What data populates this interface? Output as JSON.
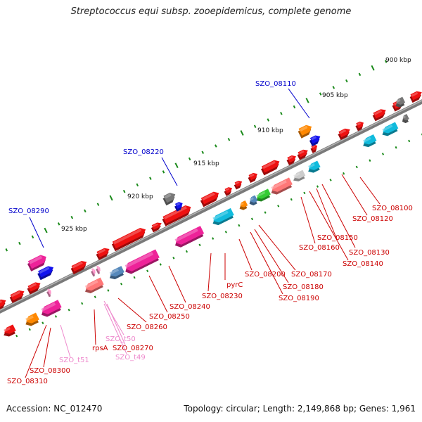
{
  "title": "Streptococcus equi subsp. zooepidemicus, complete genome",
  "footer": {
    "accession": "Accession: NC_012470",
    "summary": "Topology: circular; Length: 2,149,868 bp; Genes: 1,961"
  },
  "ruler": [
    {
      "label": "900 kbp"
    },
    {
      "label": "905 kbp"
    },
    {
      "label": "910 kbp"
    },
    {
      "label": "915 kbp"
    },
    {
      "label": "920 kbp"
    },
    {
      "label": "925 kbp"
    }
  ],
  "gene_labels": [
    {
      "text": "SZO_08110",
      "color": "#0000cc"
    },
    {
      "text": "SZO_08220",
      "color": "#0000cc"
    },
    {
      "text": "SZO_08290",
      "color": "#0000cc"
    },
    {
      "text": "SZO_08100",
      "color": "#cc0000"
    },
    {
      "text": "SZO_08120",
      "color": "#cc0000"
    },
    {
      "text": "SZO_08150",
      "color": "#cc0000"
    },
    {
      "text": "SZO_08130",
      "color": "#cc0000"
    },
    {
      "text": "SZO_08160",
      "color": "#cc0000"
    },
    {
      "text": "SZO_08140",
      "color": "#cc0000"
    },
    {
      "text": "pyrC",
      "color": "#cc0000"
    },
    {
      "text": "SZO_08200",
      "color": "#cc0000"
    },
    {
      "text": "SZO_08170",
      "color": "#cc0000"
    },
    {
      "text": "SZO_08180",
      "color": "#cc0000"
    },
    {
      "text": "SZO_08230",
      "color": "#cc0000"
    },
    {
      "text": "SZO_08190",
      "color": "#cc0000"
    },
    {
      "text": "SZO_08240",
      "color": "#cc0000"
    },
    {
      "text": "SZO_08250",
      "color": "#cc0000"
    },
    {
      "text": "SZO_08260",
      "color": "#cc0000"
    },
    {
      "text": "SZO_t50",
      "color": "#ee88cc"
    },
    {
      "text": "rpsA",
      "color": "#cc0000"
    },
    {
      "text": "SZO_08270",
      "color": "#cc0000"
    },
    {
      "text": "SZO_t49",
      "color": "#ee88cc"
    },
    {
      "text": "SZO_t51",
      "color": "#ee88cc"
    },
    {
      "text": "SZO_08300",
      "color": "#cc0000"
    },
    {
      "text": "SZO_08310",
      "color": "#cc0000"
    }
  ],
  "colors": {
    "backbone": "#7a7a7a",
    "tick": "#1a8a1a",
    "gene_red": "#ee1111",
    "gene_magenta": "#ee2299",
    "gene_cyan": "#11bbdd",
    "gene_blue": "#1111ee",
    "gene_orange": "#ff8800",
    "gene_grey": "#777777",
    "gene_salmon": "#ff7777",
    "gene_green": "#33cc33",
    "gene_slate": "#5588bb"
  }
}
